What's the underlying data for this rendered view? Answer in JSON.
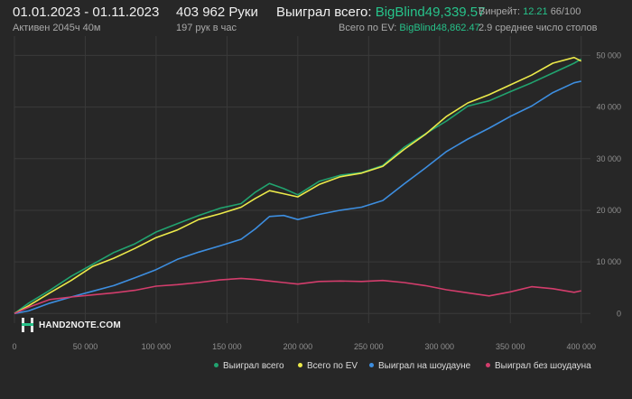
{
  "header": {
    "period": "01.01.2023 - 01.11.2023",
    "active": "Активен 2045ч 40м",
    "hands": "403 962 Руки",
    "per_hour": "197 рук в час",
    "won_label": "Выиграл всего:",
    "won_value": "BigBlind49,339.57",
    "won_ev_label": "Всего по EV:",
    "won_ev_value": "BigBlind48,862.47",
    "winrate_label": "Винрейт:",
    "winrate_value": "12.21",
    "winrate_rest": "66/100",
    "tables": "2.9 среднее число столов"
  },
  "logo": {
    "text": "HAND2NOTE.COM"
  },
  "colors": {
    "background": "#272727",
    "grid": "#3a3a3a",
    "won_total": "#21a36f",
    "ev": "#ecea4a",
    "showdown": "#3d8ee0",
    "no_showdown": "#d33d6c"
  },
  "chart_data": {
    "type": "line",
    "x_ticks": [
      "0",
      "50 000",
      "100 000",
      "150 000",
      "200 000",
      "250 000",
      "300 000",
      "350 000",
      "400 000"
    ],
    "y_ticks": [
      "0",
      "10 000",
      "20 000",
      "30 000",
      "40 000",
      "50 000"
    ],
    "xlim": [
      0,
      404000
    ],
    "ylim": [
      -1000,
      52000
    ],
    "grid": true,
    "legend_position": "bottom-right",
    "series": [
      {
        "name": "Выиграл всего",
        "color": "#21a36f",
        "x": [
          0,
          10000,
          25000,
          40000,
          55000,
          70000,
          85000,
          100000,
          115000,
          130000,
          145000,
          160000,
          170000,
          180000,
          190000,
          200000,
          215000,
          230000,
          245000,
          260000,
          275000,
          290000,
          305000,
          320000,
          335000,
          350000,
          365000,
          380000,
          395000,
          400000
        ],
        "y": [
          0,
          2000,
          4500,
          7200,
          9500,
          11800,
          13500,
          15800,
          17400,
          19000,
          20400,
          21300,
          23500,
          25200,
          24200,
          23000,
          25600,
          26800,
          27300,
          28700,
          32200,
          34800,
          37300,
          40200,
          41200,
          43000,
          44700,
          46600,
          48500,
          49300
        ]
      },
      {
        "name": "Всего по EV",
        "color": "#ecea4a",
        "x": [
          0,
          10000,
          25000,
          40000,
          55000,
          70000,
          85000,
          100000,
          115000,
          130000,
          145000,
          160000,
          170000,
          180000,
          190000,
          200000,
          215000,
          230000,
          245000,
          260000,
          275000,
          290000,
          305000,
          320000,
          335000,
          350000,
          365000,
          380000,
          395000,
          400000
        ],
        "y": [
          0,
          1500,
          4000,
          6400,
          9100,
          10700,
          12600,
          14700,
          16200,
          18200,
          19300,
          20600,
          22300,
          23800,
          23200,
          22600,
          25000,
          26500,
          27200,
          28500,
          31800,
          34700,
          38200,
          40800,
          42400,
          44300,
          46200,
          48500,
          49600,
          48900
        ]
      },
      {
        "name": "Выиграл на шоудауне",
        "color": "#3d8ee0",
        "x": [
          0,
          10000,
          25000,
          40000,
          55000,
          70000,
          85000,
          100000,
          115000,
          130000,
          145000,
          160000,
          170000,
          180000,
          190000,
          200000,
          215000,
          230000,
          245000,
          260000,
          275000,
          290000,
          305000,
          320000,
          335000,
          350000,
          365000,
          380000,
          395000,
          400000
        ],
        "y": [
          0,
          500,
          2000,
          3200,
          4300,
          5400,
          6900,
          8500,
          10500,
          11900,
          13100,
          14400,
          16400,
          18800,
          19000,
          18200,
          19200,
          20000,
          20600,
          21900,
          25100,
          28200,
          31400,
          33800,
          35900,
          38200,
          40200,
          42800,
          44700,
          45000
        ]
      },
      {
        "name": "Выиграл без шоудауна",
        "color": "#d33d6c",
        "x": [
          0,
          10000,
          25000,
          40000,
          55000,
          70000,
          85000,
          100000,
          115000,
          130000,
          145000,
          160000,
          170000,
          180000,
          190000,
          200000,
          215000,
          230000,
          245000,
          260000,
          275000,
          290000,
          305000,
          320000,
          335000,
          350000,
          365000,
          380000,
          395000,
          400000
        ],
        "y": [
          0,
          1200,
          2700,
          3200,
          3600,
          4000,
          4500,
          5300,
          5600,
          6000,
          6500,
          6800,
          6600,
          6300,
          6000,
          5700,
          6200,
          6300,
          6200,
          6400,
          6000,
          5400,
          4600,
          4000,
          3400,
          4200,
          5200,
          4800,
          4100,
          4400
        ]
      }
    ]
  }
}
